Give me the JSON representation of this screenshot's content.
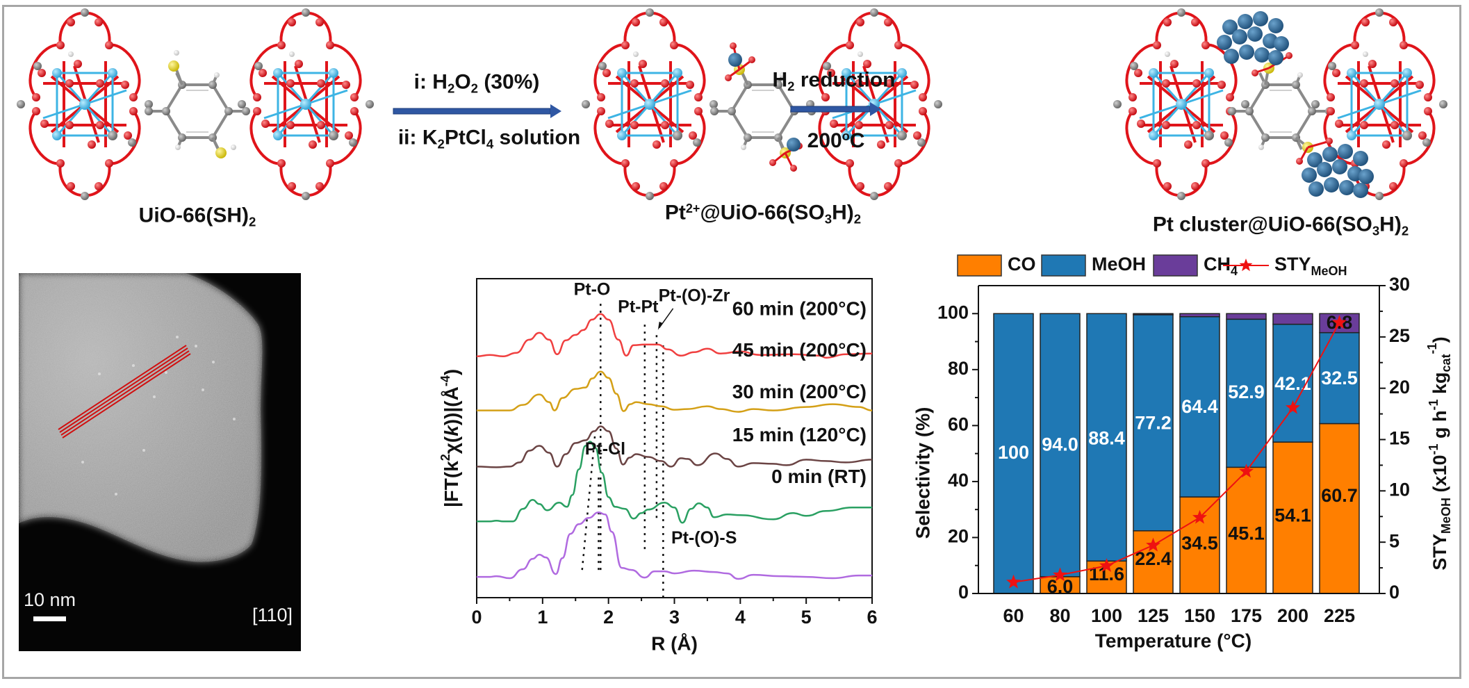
{
  "scheme": {
    "mol1_label": {
      "main": "UiO-66(SH)",
      "sub": "2"
    },
    "step1_line1": {
      "prefix": "i: H",
      "sub1": "2",
      "mid": "O",
      "sub2": "2",
      "suffix": " (30%)"
    },
    "step1_line2": {
      "prefix": "ii: K",
      "sub1": "2",
      "mid": "PtCl",
      "sub2": "4",
      "suffix": " solution"
    },
    "mol2_label": {
      "pre": "Pt",
      "sup": "2+",
      "mid": "@UiO-66(SO",
      "sub1": "3",
      "mid2": "H)",
      "sub2": "2"
    },
    "step2_line1": {
      "prefix": "H",
      "sub": "2",
      "suffix": " reduction"
    },
    "step2_line2": {
      "main": "200",
      "sup": "o",
      "suffix": "C"
    },
    "mol3_label": {
      "main": "Pt cluster@UiO-66(SO",
      "sub1": "3",
      "mid": "H)",
      "sub2": "2"
    },
    "arrow_color": "#2f57a3",
    "atom_colors": {
      "O": "#e0141a",
      "Zr": "#3db4e4",
      "C": "#7f7f7f",
      "H": "#f2f2f2",
      "S": "#e8d82a",
      "Pt": "#27608f"
    }
  },
  "tem": {
    "scale_bar_label": "10 nm",
    "zone_axis": "[110]",
    "line_color": "#d01010"
  },
  "chart_data": [
    {
      "type": "line",
      "title": "",
      "xlabel": "R (Å)",
      "ylabel": {
        "pre": "|FT(k",
        "sup1": "2",
        "chi": "χ(",
        "k": "k",
        "post": "))|(Å",
        "sup2": "-4",
        "end": ")"
      },
      "xlim": [
        0,
        6
      ],
      "xticks": [
        0,
        1,
        2,
        3,
        4,
        5,
        6
      ],
      "ylim": [
        0,
        46
      ],
      "yticks_shown": false,
      "series": [
        {
          "name": "60 min (200°C)",
          "color": "#f04040",
          "offset": 35,
          "points": [
            [
              0,
              -0.2
            ],
            [
              0.2,
              0
            ],
            [
              0.4,
              -0.2
            ],
            [
              0.6,
              0.3
            ],
            [
              0.8,
              2.2
            ],
            [
              0.95,
              3.2
            ],
            [
              1.1,
              2.2
            ],
            [
              1.22,
              0.1
            ],
            [
              1.35,
              2.1
            ],
            [
              1.5,
              2.9
            ],
            [
              1.62,
              3.6
            ],
            [
              1.75,
              5.1
            ],
            [
              1.88,
              5.9
            ],
            [
              2.0,
              5.1
            ],
            [
              2.15,
              2.2
            ],
            [
              2.27,
              -0.1
            ],
            [
              2.38,
              1.4
            ],
            [
              2.55,
              1.5
            ],
            [
              2.75,
              1.5
            ],
            [
              2.9,
              0.8
            ],
            [
              3.1,
              -0.1
            ],
            [
              3.3,
              0.4
            ],
            [
              3.5,
              0.9
            ],
            [
              3.7,
              0.2
            ],
            [
              4.0,
              0.5
            ],
            [
              4.3,
              0.0
            ],
            [
              4.8,
              0.1
            ],
            [
              5.2,
              -0.1
            ],
            [
              5.3,
              -0.4
            ],
            [
              5.6,
              0.1
            ],
            [
              6.0,
              0.2
            ]
          ]
        },
        {
          "name": "45 min (200°C)",
          "color": "#d4a017",
          "offset": 27,
          "points": [
            [
              0,
              0
            ],
            [
              0.3,
              0
            ],
            [
              0.5,
              0
            ],
            [
              0.7,
              0.8
            ],
            [
              0.95,
              2.3
            ],
            [
              1.1,
              1.2
            ],
            [
              1.18,
              0
            ],
            [
              1.3,
              1.8
            ],
            [
              1.5,
              3.1
            ],
            [
              1.65,
              3.3
            ],
            [
              1.75,
              4.6
            ],
            [
              1.88,
              5.6
            ],
            [
              2.0,
              4.7
            ],
            [
              2.12,
              2.4
            ],
            [
              2.23,
              -0.1
            ],
            [
              2.33,
              0.9
            ],
            [
              2.42,
              1.2
            ],
            [
              2.6,
              0.9
            ],
            [
              2.8,
              0.6
            ],
            [
              3.0,
              0.1
            ],
            [
              3.2,
              0.2
            ],
            [
              3.5,
              0.6
            ],
            [
              3.7,
              0.2
            ],
            [
              3.97,
              -0.2
            ],
            [
              4.2,
              0.2
            ],
            [
              4.5,
              0.0
            ],
            [
              5.0,
              0.5
            ],
            [
              5.4,
              0.9
            ],
            [
              5.8,
              0.5
            ],
            [
              6.0,
              0.0
            ]
          ]
        },
        {
          "name": "30 min (200°C)",
          "color": "#6b4444",
          "offset": 18.9,
          "points": [
            [
              0,
              0
            ],
            [
              0.3,
              -0.1
            ],
            [
              0.5,
              0
            ],
            [
              0.65,
              0.6
            ],
            [
              0.8,
              2.3
            ],
            [
              0.95,
              3.0
            ],
            [
              1.1,
              2.0
            ],
            [
              1.22,
              0.0
            ],
            [
              1.35,
              1.8
            ],
            [
              1.5,
              3.4
            ],
            [
              1.65,
              3.8
            ],
            [
              1.78,
              5.1
            ],
            [
              1.88,
              5.8
            ],
            [
              2.0,
              5.1
            ],
            [
              2.12,
              2.6
            ],
            [
              2.22,
              0.3
            ],
            [
              2.32,
              1.3
            ],
            [
              2.42,
              1.8
            ],
            [
              2.6,
              1.4
            ],
            [
              2.8,
              0.8
            ],
            [
              2.95,
              0
            ],
            [
              3.1,
              1.2
            ],
            [
              3.2,
              1.1
            ],
            [
              3.35,
              0.2
            ],
            [
              3.62,
              1.9
            ],
            [
              3.8,
              1.1
            ],
            [
              3.97,
              0.0
            ],
            [
              4.2,
              0.5
            ],
            [
              4.5,
              0.4
            ],
            [
              4.7,
              0.2
            ],
            [
              5.0,
              1.0
            ],
            [
              5.3,
              0.8
            ],
            [
              5.6,
              0.6
            ],
            [
              6.0,
              1.0
            ]
          ]
        },
        {
          "name": "15 min (120°C)",
          "color": "#2aa062",
          "offset": 11,
          "points": [
            [
              0,
              0
            ],
            [
              0.2,
              0
            ],
            [
              0.3,
              0.1
            ],
            [
              0.4,
              0
            ],
            [
              0.55,
              0
            ],
            [
              0.7,
              1.8
            ],
            [
              0.85,
              3.1
            ],
            [
              0.95,
              2.5
            ],
            [
              1.07,
              1.6
            ],
            [
              1.25,
              2.7
            ],
            [
              1.37,
              2.1
            ],
            [
              1.45,
              3.8
            ],
            [
              1.55,
              7.5
            ],
            [
              1.65,
              10.9
            ],
            [
              1.72,
              11.5
            ],
            [
              1.8,
              10.6
            ],
            [
              1.9,
              7.0
            ],
            [
              2.0,
              3.5
            ],
            [
              2.1,
              2.1
            ],
            [
              2.25,
              1.8
            ],
            [
              2.38,
              0.4
            ],
            [
              2.5,
              1.2
            ],
            [
              2.6,
              1.7
            ],
            [
              2.85,
              2.7
            ],
            [
              3.0,
              2.0
            ],
            [
              3.12,
              -0.2
            ],
            [
              3.25,
              1.8
            ],
            [
              3.37,
              2.6
            ],
            [
              3.5,
              2.0
            ],
            [
              3.6,
              0.6
            ],
            [
              3.8,
              1.0
            ],
            [
              4.0,
              0.9
            ],
            [
              4.5,
              0.3
            ],
            [
              4.8,
              1.2
            ],
            [
              5.0,
              0.8
            ],
            [
              5.3,
              1.5
            ],
            [
              5.7,
              2.0
            ],
            [
              6.0,
              2.0
            ]
          ]
        },
        {
          "name": "0 min (RT)",
          "color": "#b06ae0",
          "offset": 3,
          "points": [
            [
              0,
              0
            ],
            [
              0.2,
              0
            ],
            [
              0.3,
              0.1
            ],
            [
              0.5,
              -0.2
            ],
            [
              0.7,
              1.1
            ],
            [
              0.85,
              2.6
            ],
            [
              0.95,
              3.2
            ],
            [
              1.05,
              2.8
            ],
            [
              1.2,
              0.4
            ],
            [
              1.3,
              2.7
            ],
            [
              1.42,
              6.2
            ],
            [
              1.55,
              7.6
            ],
            [
              1.7,
              8.5
            ],
            [
              1.85,
              9.3
            ],
            [
              1.95,
              9.0
            ],
            [
              2.05,
              6.5
            ],
            [
              2.2,
              1.3
            ],
            [
              2.35,
              1.0
            ],
            [
              2.55,
              -0.1
            ],
            [
              2.7,
              0.8
            ],
            [
              2.85,
              0.8
            ],
            [
              3.0,
              0.5
            ],
            [
              3.3,
              0.9
            ],
            [
              3.6,
              0.7
            ],
            [
              3.8,
              0.5
            ],
            [
              3.97,
              -0.3
            ],
            [
              4.2,
              0.3
            ],
            [
              4.6,
              0.1
            ],
            [
              5.0,
              0
            ],
            [
              5.4,
              -0.2
            ],
            [
              5.8,
              0.2
            ],
            [
              6.0,
              0.2
            ]
          ]
        }
      ],
      "series_labels_y": [
        41.5,
        35.5,
        29.5,
        23.3,
        17.3
      ],
      "annotations": [
        {
          "text": "Pt-O",
          "x": 1.75,
          "y": 44.3
        },
        {
          "text": "Pt-Pt",
          "x": 2.45,
          "y": 41.8
        },
        {
          "text": "Pt-(O)-Zr",
          "x": 3.3,
          "y": 43.4
        },
        {
          "text": "Pt-Cl",
          "x": 1.95,
          "y": 21.3
        },
        {
          "text": "Pt-(O)-S",
          "x": 3.45,
          "y": 8.5
        }
      ],
      "reference_lines": [
        {
          "name": "Pt-O",
          "x": 1.88,
          "y_from": 4,
          "y_to": 42.7
        },
        {
          "name": "Pt-Pt",
          "x": 2.55,
          "y_from": 7,
          "y_to": 40
        },
        {
          "name": "Pt-(O)-Zr",
          "x": 2.73,
          "y_from": 11.5,
          "y_to": 38.3
        },
        {
          "name": "Pt-(O)-S",
          "x": 2.83,
          "y_from": 0,
          "y_to": 37
        },
        {
          "name": "Pt-Cl-a",
          "x": 1.6,
          "x2": 1.8,
          "y_from": 4,
          "y_to": 24
        },
        {
          "name": "Pt-Cl-b",
          "x": 1.85,
          "x2": 1.85,
          "y_from": 4,
          "y_to": 17.5
        }
      ]
    },
    {
      "type": "bar",
      "stacked": true,
      "title": "",
      "xlabel": "Temperature (°C)",
      "ylabel": "Selectivity (%)",
      "y2label": {
        "pre": "STY",
        "sub": "MeOH",
        "mid": " (x10",
        "sup1": "-1",
        "mid2": " g h",
        "sup2": "-1",
        "mid3": " kg",
        "sub2": "cat",
        "sup3": "-1",
        "end": ")"
      },
      "categories": [
        "60",
        "80",
        "100",
        "125",
        "150",
        "175",
        "200",
        "225"
      ],
      "ylim": [
        0,
        110
      ],
      "yticks": [
        0,
        20,
        40,
        60,
        80,
        100
      ],
      "y2lim": [
        0,
        30
      ],
      "y2ticks": [
        0,
        5,
        10,
        15,
        20,
        25,
        30
      ],
      "legend_position": "top",
      "series": [
        {
          "name": "CO",
          "color": "#ff7f00",
          "values": [
            0,
            6.0,
            11.6,
            22.4,
            34.5,
            45.1,
            54.1,
            60.7
          ],
          "labels": [
            "",
            "6.0",
            "11.6",
            "22.4",
            "34.5",
            "45.1",
            "54.1",
            "60.7"
          ]
        },
        {
          "name": "MeOH",
          "color": "#1f78b4",
          "values": [
            100,
            94.0,
            88.4,
            77.2,
            64.4,
            52.9,
            42.1,
            32.5
          ],
          "labels": [
            "100",
            "94.0",
            "88.4",
            "77.2",
            "64.4",
            "52.9",
            "42.1",
            "32.5"
          ]
        },
        {
          "name": "CH4",
          "color": "#6a3d9a",
          "values": [
            0,
            0,
            0,
            0.4,
            1.1,
            2.0,
            3.8,
            6.8
          ],
          "labels": [
            "",
            "",
            "",
            "",
            "",
            "",
            "",
            "6.8"
          ]
        }
      ],
      "line_series": {
        "name": "STY_MeOH",
        "color": "#ee1111",
        "axis": "right",
        "marker": "star",
        "values": [
          1.1,
          1.8,
          2.7,
          4.7,
          7.4,
          11.9,
          18.1,
          26.4
        ]
      },
      "legend": [
        {
          "label": "CO",
          "sub": ""
        },
        {
          "label": "MeOH",
          "sub": ""
        },
        {
          "label": "CH",
          "sub": "4"
        },
        {
          "label": "STY",
          "sub": "MeOH"
        }
      ]
    }
  ]
}
